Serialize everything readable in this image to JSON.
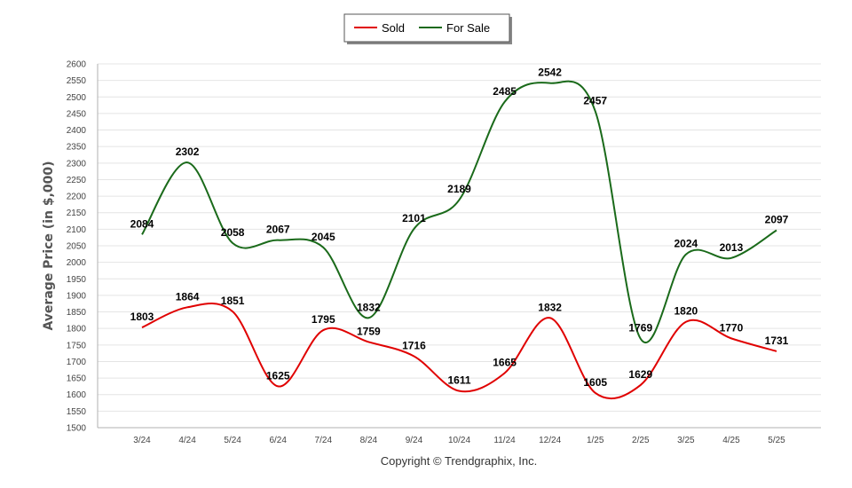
{
  "chart_data": {
    "type": "line",
    "categories": [
      "3/24",
      "4/24",
      "5/24",
      "6/24",
      "7/24",
      "8/24",
      "9/24",
      "10/24",
      "11/24",
      "12/24",
      "1/25",
      "2/25",
      "3/25",
      "4/25",
      "5/25"
    ],
    "series": [
      {
        "name": "Sold",
        "color": "#e00000",
        "values": [
          1803,
          1864,
          1851,
          1625,
          1795,
          1759,
          1716,
          1611,
          1665,
          1832,
          1605,
          1629,
          1820,
          1770,
          1731
        ]
      },
      {
        "name": "For Sale",
        "color": "#1a6a1a",
        "values": [
          2084,
          2302,
          2058,
          2067,
          2045,
          1832,
          2101,
          2189,
          2485,
          2542,
          2457,
          1769,
          2024,
          2013,
          2097
        ]
      }
    ],
    "ylabel": "Average Price  (in $,000)",
    "ylim": [
      1500,
      2600
    ],
    "ystep": 50,
    "grid": true,
    "legend_position": "top-center"
  },
  "footer": {
    "copyright": "Copyright © Trendgraphix, Inc."
  }
}
